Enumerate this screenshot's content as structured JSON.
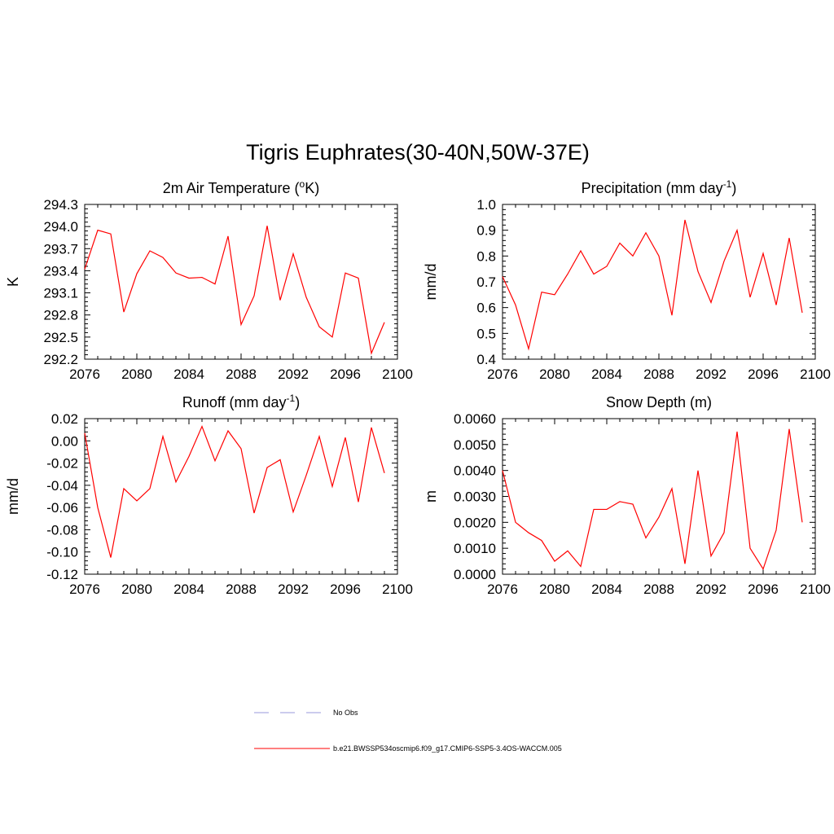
{
  "figure": {
    "title": "Tigris Euphrates(30-40N,50W-37E)"
  },
  "legend": {
    "entries": [
      {
        "label": "No Obs",
        "color": "#9999dd",
        "style": "dashed"
      },
      {
        "label": "b.e21.BWSSP534oscmip6.f09_g17.CMIP6-SSP5-3.4OS-WACCM.005",
        "color": "#ff0000",
        "style": "solid"
      }
    ]
  },
  "chart_data": [
    {
      "type": "line",
      "title": "2m Air Temperature (",
      "title_sup": "o",
      "title_after": "K)",
      "ylabel": "K",
      "xlim": [
        2076,
        2100
      ],
      "ylim": [
        292.2,
        294.3
      ],
      "xticks": [
        "2076",
        "2080",
        "2084",
        "2088",
        "2092",
        "2096",
        "2100"
      ],
      "yticks": [
        "292.2",
        "292.5",
        "292.8",
        "293.1",
        "293.4",
        "293.7",
        "294.0",
        "294.3"
      ],
      "ytick_values": [
        292.2,
        292.5,
        292.8,
        293.1,
        293.4,
        293.7,
        294.0,
        294.3
      ],
      "series": [
        {
          "name": "b.e21.BWSSP534oscmip6.f09_g17.CMIP6-SSP5-3.4OS-WACCM.005",
          "color": "#ff0000",
          "x": [
            2076,
            2077,
            2078,
            2079,
            2080,
            2081,
            2082,
            2083,
            2084,
            2085,
            2086,
            2087,
            2088,
            2089,
            2090,
            2091,
            2092,
            2093,
            2094,
            2095,
            2096,
            2097,
            2098,
            2099
          ],
          "values": [
            293.42,
            293.95,
            293.9,
            292.84,
            293.36,
            293.67,
            293.58,
            293.37,
            293.3,
            293.31,
            293.22,
            293.87,
            292.67,
            293.06,
            294.01,
            293.0,
            293.63,
            293.04,
            292.64,
            292.5,
            293.37,
            293.3,
            292.28,
            292.7
          ]
        }
      ]
    },
    {
      "type": "line",
      "title": "Precipitation (mm day",
      "title_sup": "-1",
      "title_after": ")",
      "ylabel": "mm/d",
      "xlim": [
        2076,
        2100
      ],
      "ylim": [
        0.4,
        1.0
      ],
      "xticks": [
        "2076",
        "2080",
        "2084",
        "2088",
        "2092",
        "2096",
        "2100"
      ],
      "yticks": [
        "0.4",
        "0.5",
        "0.6",
        "0.7",
        "0.8",
        "0.9",
        "1.0"
      ],
      "ytick_values": [
        0.4,
        0.5,
        0.6,
        0.7,
        0.8,
        0.9,
        1.0
      ],
      "series": [
        {
          "name": "b.e21.BWSSP534oscmip6.f09_g17.CMIP6-SSP5-3.4OS-WACCM.005",
          "color": "#ff0000",
          "x": [
            2076,
            2077,
            2078,
            2079,
            2080,
            2081,
            2082,
            2083,
            2084,
            2085,
            2086,
            2087,
            2088,
            2089,
            2090,
            2091,
            2092,
            2093,
            2094,
            2095,
            2096,
            2097,
            2098,
            2099
          ],
          "values": [
            0.72,
            0.61,
            0.44,
            0.66,
            0.65,
            0.73,
            0.82,
            0.73,
            0.76,
            0.85,
            0.8,
            0.89,
            0.8,
            0.57,
            0.94,
            0.74,
            0.62,
            0.78,
            0.9,
            0.64,
            0.81,
            0.61,
            0.87,
            0.58
          ]
        }
      ]
    },
    {
      "type": "line",
      "title": "Runoff (mm day",
      "title_sup": "-1",
      "title_after": ")",
      "ylabel": "mm/d",
      "xlim": [
        2076,
        2100
      ],
      "ylim": [
        -0.12,
        0.02
      ],
      "xticks": [
        "2076",
        "2080",
        "2084",
        "2088",
        "2092",
        "2096",
        "2100"
      ],
      "yticks": [
        "-0.12",
        "-0.10",
        "-0.08",
        "-0.06",
        "-0.04",
        "-0.02",
        "0.00",
        "0.02"
      ],
      "ytick_values": [
        -0.12,
        -0.1,
        -0.08,
        -0.06,
        -0.04,
        -0.02,
        0.0,
        0.02
      ],
      "series": [
        {
          "name": "b.e21.BWSSP534oscmip6.f09_g17.CMIP6-SSP5-3.4OS-WACCM.005",
          "color": "#ff0000",
          "x": [
            2076,
            2077,
            2078,
            2079,
            2080,
            2081,
            2082,
            2083,
            2084,
            2085,
            2086,
            2087,
            2088,
            2089,
            2090,
            2091,
            2092,
            2093,
            2094,
            2095,
            2096,
            2097,
            2098,
            2099
          ],
          "values": [
            0.007,
            -0.06,
            -0.105,
            -0.043,
            -0.054,
            -0.043,
            0.004,
            -0.037,
            -0.014,
            0.013,
            -0.018,
            0.009,
            -0.007,
            -0.065,
            -0.024,
            -0.017,
            -0.064,
            -0.031,
            0.004,
            -0.041,
            0.003,
            -0.055,
            0.012,
            -0.029
          ]
        }
      ]
    },
    {
      "type": "line",
      "title": "Snow Depth (m)",
      "title_sup": "",
      "title_after": "",
      "ylabel": "m",
      "xlim": [
        2076,
        2100
      ],
      "ylim": [
        0.0,
        0.006
      ],
      "xticks": [
        "2076",
        "2080",
        "2084",
        "2088",
        "2092",
        "2096",
        "2100"
      ],
      "yticks": [
        "0.0000",
        "0.0010",
        "0.0020",
        "0.0030",
        "0.0040",
        "0.0050",
        "0.0060"
      ],
      "ytick_values": [
        0.0,
        0.001,
        0.002,
        0.003,
        0.004,
        0.005,
        0.006
      ],
      "series": [
        {
          "name": "b.e21.BWSSP534oscmip6.f09_g17.CMIP6-SSP5-3.4OS-WACCM.005",
          "color": "#ff0000",
          "x": [
            2076,
            2077,
            2078,
            2079,
            2080,
            2081,
            2082,
            2083,
            2084,
            2085,
            2086,
            2087,
            2088,
            2089,
            2090,
            2091,
            2092,
            2093,
            2094,
            2095,
            2096,
            2097,
            2098,
            2099
          ],
          "values": [
            0.004,
            0.002,
            0.0016,
            0.0013,
            0.0005,
            0.0009,
            0.0003,
            0.0025,
            0.0025,
            0.0028,
            0.0027,
            0.0014,
            0.0022,
            0.0033,
            0.0004,
            0.004,
            0.0007,
            0.0016,
            0.0055,
            0.001,
            0.0002,
            0.0017,
            0.0056,
            0.002
          ]
        }
      ]
    }
  ]
}
